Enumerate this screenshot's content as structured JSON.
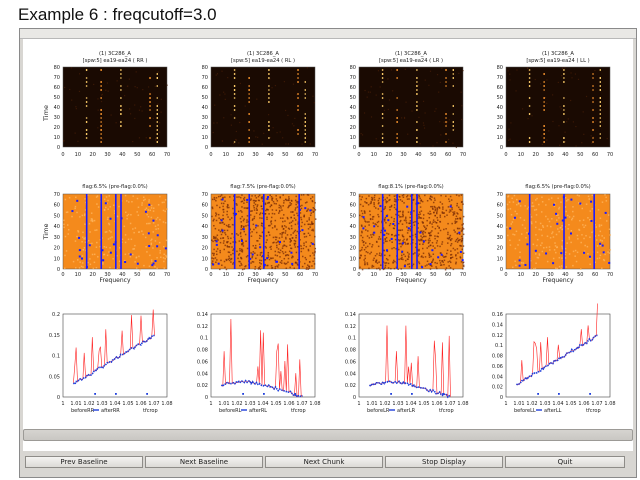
{
  "heading": "Example 6 : freqcutoff=3.0",
  "window": {
    "title": "",
    "buttons": [
      "Prev Baseline",
      "Next Baseline",
      "Next Chunk",
      "Stop Display",
      "Quit"
    ]
  },
  "rows": {
    "top": {
      "ylabel": "Time",
      "yticks": [
        "0",
        "10",
        "20",
        "30",
        "40",
        "50",
        "60",
        "70",
        "80"
      ],
      "xticks": [
        "0",
        "10",
        "20",
        "30",
        "40",
        "50",
        "60",
        "70"
      ],
      "panels": [
        {
          "title1": "(1) 3C286_A",
          "title2": "[spw:5] ea19-ea24  ( RR )"
        },
        {
          "title1": "(1) 3C286_A",
          "title2": "[spw:5] ea19-ea24  ( RL )"
        },
        {
          "title1": "(1) 3C286_A",
          "title2": "[spw:5] ea19-ea24  ( LR )"
        },
        {
          "title1": "(1) 3C286_A",
          "title2": "[spw:5] ea19-ea24  ( LL )"
        }
      ]
    },
    "middle": {
      "ylabel": "Time",
      "xlabel": "Frequency",
      "yticks": [
        "0",
        "10",
        "20",
        "30",
        "40",
        "50",
        "60",
        "70"
      ],
      "xticks": [
        "0",
        "10",
        "20",
        "30",
        "40",
        "50",
        "60",
        "70"
      ],
      "panels": [
        {
          "title": "flag:6.5% (pre-flag:0.0%)"
        },
        {
          "title": "flag:7.5% (pre-flag:0.0%)"
        },
        {
          "title": "flag:8.1% (pre-flag:0.0%)"
        },
        {
          "title": "flag:6.5% (pre-flag:0.0%)"
        }
      ]
    },
    "bottom": {
      "panels": [
        {
          "yticks": [
            "0",
            "0.05",
            "0.1",
            "0.15",
            "0.2"
          ],
          "legend": [
            "beforeRR",
            "afterRR",
            "tfcrop"
          ]
        },
        {
          "yticks": [
            "0",
            "0.02",
            "0.04",
            "0.06",
            "0.08",
            "0.1",
            "0.12",
            "0.14"
          ],
          "legend": [
            "beforeRL",
            "afterRL",
            "tfcrop"
          ]
        },
        {
          "yticks": [
            "0",
            "0.02",
            "0.04",
            "0.06",
            "0.08",
            "0.1",
            "0.12",
            "0.14"
          ],
          "legend": [
            "beforeLR",
            "afterLR",
            "tfcrop"
          ]
        },
        {
          "yticks": [
            "0",
            "0.02",
            "0.04",
            "0.06",
            "0.08",
            "0.1",
            "0.12",
            "0.14",
            "0.16"
          ],
          "legend": [
            "beforeLL",
            "afterLL",
            "tfcrop"
          ]
        }
      ],
      "xticks": [
        "1",
        "1.01",
        "1.02",
        "1.03",
        "1.04",
        "1.05",
        "1.06",
        "1.07",
        "1.08"
      ]
    }
  },
  "colors": {
    "before": "#ff2020",
    "after": "#1f3fdc",
    "tfcrop": "#111111",
    "flag": "#1a1aff"
  }
}
